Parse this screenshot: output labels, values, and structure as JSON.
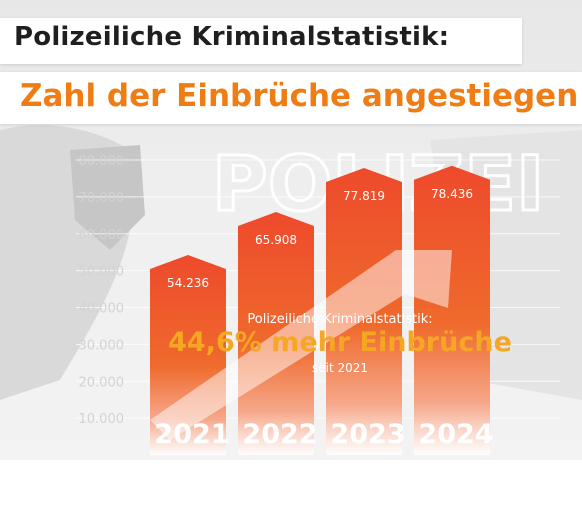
{
  "header": {
    "title": "Polizeiliche Kriminalstatistik:",
    "subtitle": "Zahl der Einbrüche angestiegen"
  },
  "background": {
    "watermark": "POLIZEI"
  },
  "callout": {
    "line1": "Polizeiliche Kriminalstatistik:",
    "line2": "44,6% mehr Einbrüche",
    "line3": "seit 2021"
  },
  "colors": {
    "bar_top": "#ee4a2c",
    "bar_bottom": "#ffffff",
    "accent_orange": "#f07c14",
    "callout_yellow": "#f5a623"
  },
  "chart_data": {
    "type": "bar",
    "title": "Zahl der Einbrüche angestiegen",
    "categories": [
      "2021",
      "2022",
      "2023",
      "2024"
    ],
    "values": [
      54236,
      65908,
      77819,
      78436
    ],
    "value_labels": [
      "54.236",
      "65.908",
      "77.819",
      "78.436"
    ],
    "ylim": [
      0,
      80000
    ],
    "yticks": [
      10000,
      20000,
      30000,
      40000,
      50000,
      60000,
      70000,
      80000
    ],
    "ytick_labels": [
      "10.000",
      "20.000",
      "30.000",
      "40.000",
      "50.000",
      "60.000",
      "70.000",
      "80.000"
    ],
    "grid": true,
    "legend": "none"
  }
}
